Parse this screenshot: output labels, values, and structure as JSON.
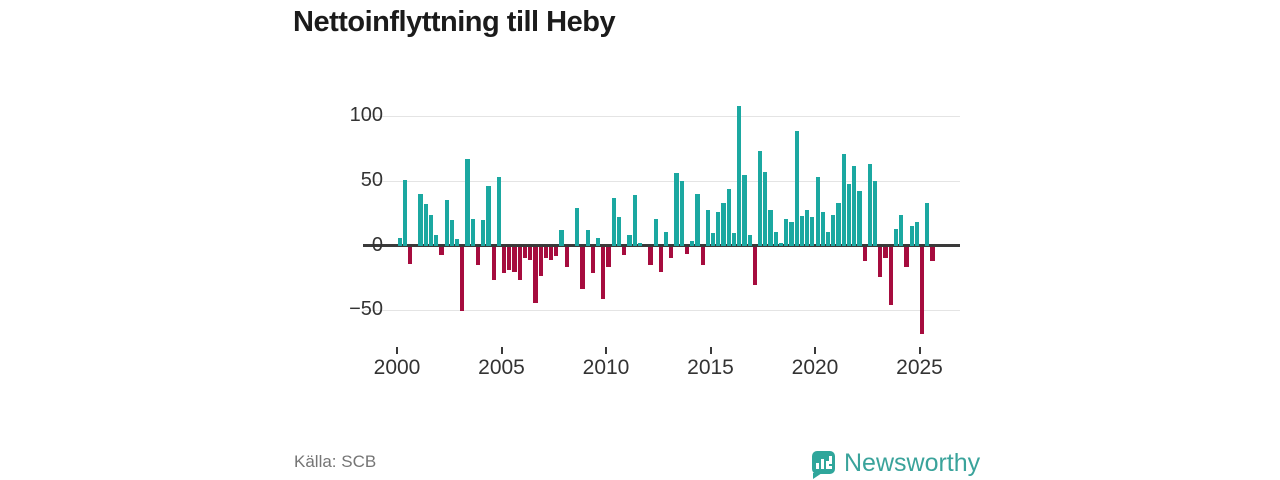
{
  "title": "Nettoinflyttning till Heby",
  "source": "Källa: SCB",
  "brand": {
    "name": "Newsworthy",
    "icon": "bar-chart-pin-icon",
    "color": "#3aa39b"
  },
  "chart_data": {
    "type": "bar",
    "title": "Nettoinflyttning till Heby",
    "xlabel": "",
    "ylabel": "",
    "grid": true,
    "legend": false,
    "ylim": [
      -80,
      118
    ],
    "yticks": [
      100,
      50,
      0,
      -50
    ],
    "xticks": [
      "2000",
      "2005",
      "2010",
      "2015",
      "2020",
      "2025"
    ],
    "positive_color": "#1ba8a1",
    "negative_color": "#a60c3e",
    "axis_color": "#3a3a3a",
    "categories": [
      "2000 Q1",
      "2000 Q2",
      "2000 Q3",
      "2000 Q4",
      "2001 Q1",
      "2001 Q2",
      "2001 Q3",
      "2001 Q4",
      "2002 Q1",
      "2002 Q2",
      "2002 Q3",
      "2002 Q4",
      "2003 Q1",
      "2003 Q2",
      "2003 Q3",
      "2003 Q4",
      "2004 Q1",
      "2004 Q2",
      "2004 Q3",
      "2004 Q4",
      "2005 Q1",
      "2005 Q2",
      "2005 Q3",
      "2005 Q4",
      "2006 Q1",
      "2006 Q2",
      "2006 Q3",
      "2006 Q4",
      "2007 Q1",
      "2007 Q2",
      "2007 Q3",
      "2007 Q4",
      "2008 Q1",
      "2008 Q2",
      "2008 Q3",
      "2008 Q4",
      "2009 Q1",
      "2009 Q2",
      "2009 Q3",
      "2009 Q4",
      "2010 Q1",
      "2010 Q2",
      "2010 Q3",
      "2010 Q4",
      "2011 Q1",
      "2011 Q2",
      "2011 Q3",
      "2011 Q4",
      "2012 Q1",
      "2012 Q2",
      "2012 Q3",
      "2012 Q4",
      "2013 Q1",
      "2013 Q2",
      "2013 Q3",
      "2013 Q4",
      "2014 Q1",
      "2014 Q2",
      "2014 Q3",
      "2014 Q4",
      "2015 Q1",
      "2015 Q2",
      "2015 Q3",
      "2015 Q4",
      "2016 Q1",
      "2016 Q2",
      "2016 Q3",
      "2016 Q4",
      "2017 Q1",
      "2017 Q2",
      "2017 Q3",
      "2017 Q4",
      "2018 Q1",
      "2018 Q2",
      "2018 Q3",
      "2018 Q4",
      "2019 Q1",
      "2019 Q2",
      "2019 Q3",
      "2019 Q4",
      "2020 Q1",
      "2020 Q2",
      "2020 Q3",
      "2020 Q4",
      "2021 Q1",
      "2021 Q2",
      "2021 Q3",
      "2021 Q4",
      "2022 Q1",
      "2022 Q2",
      "2022 Q3",
      "2022 Q4",
      "2023 Q1",
      "2023 Q2",
      "2023 Q3",
      "2023 Q4",
      "2024 Q1",
      "2024 Q2",
      "2024 Q3",
      "2024 Q4",
      "2025 Q1",
      "2025 Q2",
      "2025 Q3"
    ],
    "values": [
      6,
      51,
      -13,
      0,
      40,
      32,
      24,
      8,
      -6,
      35,
      20,
      5,
      -49,
      67,
      21,
      -14,
      20,
      46,
      -25,
      53,
      -20,
      -18,
      -19,
      -25,
      -8,
      -10,
      -43,
      -22,
      -8,
      -10,
      -7,
      12,
      -15,
      0,
      29,
      -32,
      12,
      -20,
      6,
      -40,
      -15,
      37,
      22,
      -6,
      8,
      39,
      2,
      0,
      -14,
      21,
      -19,
      11,
      -8,
      56,
      50,
      -5,
      4,
      40,
      -14,
      28,
      10,
      26,
      33,
      44,
      10,
      108,
      55,
      8,
      -29,
      73,
      57,
      28,
      11,
      2,
      21,
      18,
      89,
      23,
      28,
      22,
      53,
      26,
      11,
      24,
      33,
      71,
      48,
      62,
      42,
      -11,
      63,
      50,
      -23,
      -8,
      -45,
      13,
      24,
      -15,
      15,
      18,
      -67,
      33,
      -11
    ]
  }
}
